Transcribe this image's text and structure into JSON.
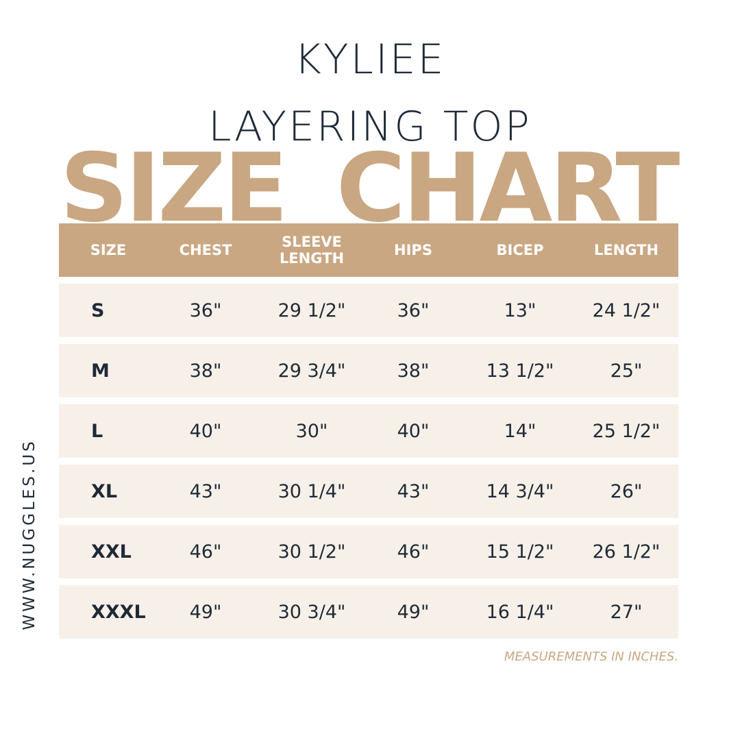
{
  "title": {
    "line1": "KYLIEE",
    "line2": "LAYERING TOP",
    "banner": "SIZE CHART"
  },
  "table": {
    "headers": [
      "SIZE",
      "CHEST",
      "SLEEVE LENGTH",
      "HIPS",
      "BICEP",
      "LENGTH"
    ],
    "rows": [
      [
        "S",
        "36\"",
        "29 1/2\"",
        "36\"",
        "13\"",
        "24 1/2\""
      ],
      [
        "M",
        "38\"",
        "29 3/4\"",
        "38\"",
        "13 1/2\"",
        "25\""
      ],
      [
        "L",
        "40\"",
        "30\"",
        "40\"",
        "14\"",
        "25 1/2\""
      ],
      [
        "XL",
        "43\"",
        "30 1/4\"",
        "43\"",
        "14 3/4\"",
        "26\""
      ],
      [
        "XXL",
        "46\"",
        "30 1/2\"",
        "46\"",
        "15 1/2\"",
        "26 1/2\""
      ],
      [
        "XXXL",
        "49\"",
        "30 3/4\"",
        "49\"",
        "16 1/4\"",
        "27\""
      ]
    ]
  },
  "note": "MEASUREMENTS IN INCHES.",
  "website": "WWW.NUGGLES.US"
}
